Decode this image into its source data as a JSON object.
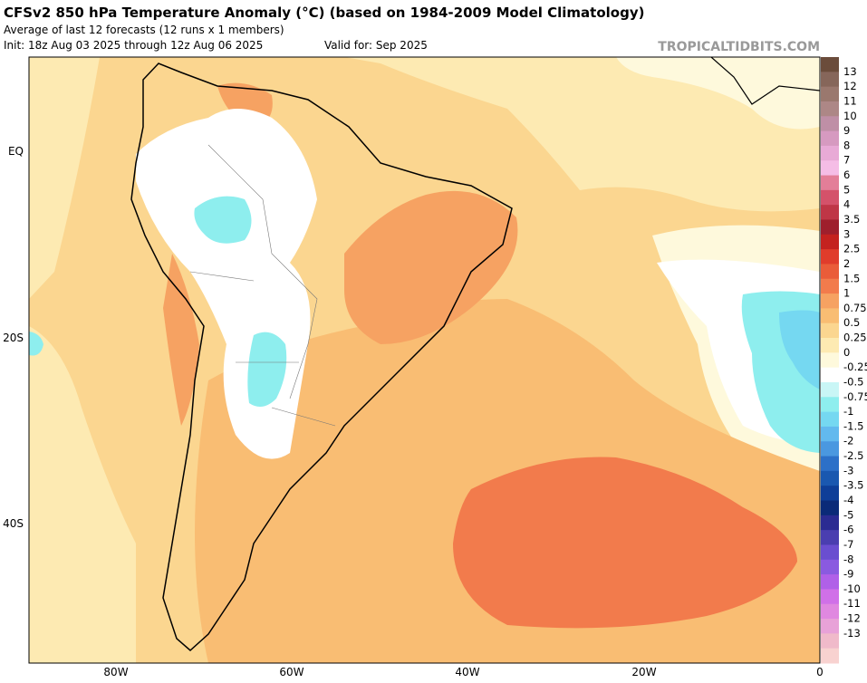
{
  "header": {
    "title": "CFSv2 850 hPa Temperature Anomaly (°C) (based on 1984-2009 Model Climatology)",
    "subtitle": "Average of last 12 forecasts (12 runs x 1 members)",
    "init": "Init: 18z Aug 03 2025 through 12z Aug 06 2025",
    "valid": "Valid for: Sep 2025",
    "credit": "TROPICALTIDBITS.COM"
  },
  "axes": {
    "x_labels": [
      "80W",
      "60W",
      "40W",
      "20W",
      "0"
    ],
    "y_labels": [
      "EQ",
      "20S",
      "40S"
    ]
  },
  "colorbar": {
    "labels": [
      "13",
      "12",
      "11",
      "10",
      "9",
      "8",
      "7",
      "6",
      "5",
      "4",
      "3.5",
      "3",
      "2.5",
      "2",
      "1.5",
      "1",
      "0.75",
      "0.5",
      "0.25",
      "0",
      "-0.25",
      "-0.5",
      "-0.75",
      "-1",
      "-1.5",
      "-2",
      "-2.5",
      "-3",
      "-3.5",
      "-4",
      "-5",
      "-6",
      "-7",
      "-8",
      "-9",
      "-10",
      "-11",
      "-12",
      "-13"
    ],
    "colors": [
      "#6b4c3b",
      "#86665a",
      "#9a786e",
      "#ad8786",
      "#bf8fa6",
      "#d69ac0",
      "#e8aad6",
      "#f5bde6",
      "#e37e98",
      "#d4526a",
      "#bf3646",
      "#9e1f2c",
      "#c4221f",
      "#e03c2b",
      "#ea5c39",
      "#f27b4c",
      "#f6a262",
      "#f9bd73",
      "#fbd690",
      "#fdeab2",
      "#fef9dc",
      "#ffffff",
      "#c9f6f6",
      "#8eeeee",
      "#75d8f1",
      "#62b9ee",
      "#4a98e0",
      "#2c70c8",
      "#1a58b0",
      "#0e3e98",
      "#0a2a78",
      "#2b2b92",
      "#4a3eb0",
      "#6a4ed0",
      "#8a5ae0",
      "#b060e8",
      "#d070e8",
      "#e088e0",
      "#e8a2d8",
      "#f0baca",
      "#f8d2d0"
    ]
  }
}
